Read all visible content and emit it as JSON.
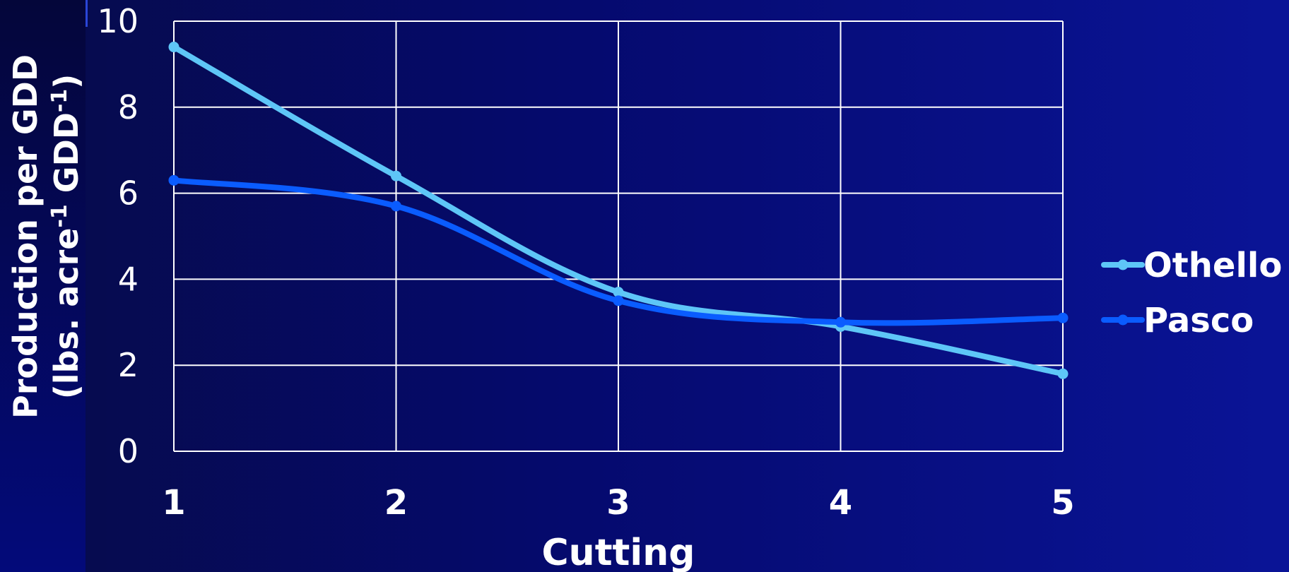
{
  "chart_data": {
    "type": "line",
    "x": [
      1,
      2,
      3,
      4,
      5
    ],
    "xlabel": "Cutting",
    "ylabel_line1": "Production per GDD",
    "ylabel_line2_prefix": "(lbs. acre",
    "ylabel_line2_sup1": "-1",
    "ylabel_line2_mid": " GDD",
    "ylabel_line2_sup2": "-1",
    "ylabel_line2_suffix": ")",
    "ylim": [
      0,
      10
    ],
    "yticks": [
      0,
      2,
      4,
      6,
      8,
      10
    ],
    "grid": true,
    "legend_position": "right",
    "series": [
      {
        "name": "Othello",
        "color": "#5ec6f7",
        "values": [
          9.4,
          6.4,
          3.7,
          2.9,
          1.8
        ]
      },
      {
        "name": "Pasco",
        "color": "#0a5cff",
        "values": [
          6.3,
          5.7,
          3.5,
          3.0,
          3.1
        ]
      }
    ]
  }
}
